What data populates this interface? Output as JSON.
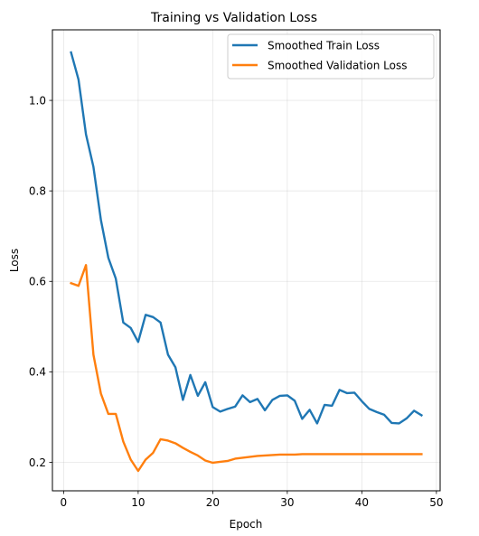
{
  "chart_data": {
    "type": "line",
    "title": "Training vs Validation Loss",
    "xlabel": "Epoch",
    "ylabel": "Loss",
    "xlim": [
      -1.5,
      50.5
    ],
    "ylim": [
      0.137,
      1.156
    ],
    "xticks": [
      0,
      10,
      20,
      30,
      40,
      50
    ],
    "yticks": [
      0.2,
      0.4,
      0.6,
      0.8,
      1.0
    ],
    "ytick_labels": [
      "0.2",
      "0.4",
      "0.6",
      "0.8",
      "1.0"
    ],
    "grid": true,
    "legend_position": "top-right",
    "x": [
      1,
      2,
      3,
      4,
      5,
      6,
      7,
      8,
      9,
      10,
      11,
      12,
      13,
      14,
      15,
      16,
      17,
      18,
      19,
      20,
      21,
      22,
      23,
      24,
      25,
      26,
      27,
      28,
      29,
      30,
      31,
      32,
      33,
      34,
      35,
      36,
      37,
      38,
      39,
      40,
      41,
      42,
      43,
      44,
      45,
      46,
      47,
      48
    ],
    "series": [
      {
        "name": "Smoothed Train Loss",
        "color": "#1f77b4",
        "values": [
          1.106,
          1.046,
          0.925,
          0.853,
          0.736,
          0.652,
          0.606,
          0.509,
          0.497,
          0.466,
          0.526,
          0.521,
          0.509,
          0.438,
          0.41,
          0.338,
          0.393,
          0.347,
          0.377,
          0.322,
          0.312,
          0.318,
          0.323,
          0.348,
          0.333,
          0.34,
          0.315,
          0.338,
          0.347,
          0.348,
          0.336,
          0.296,
          0.316,
          0.286,
          0.327,
          0.325,
          0.36,
          0.353,
          0.354,
          0.335,
          0.318,
          0.311,
          0.305,
          0.287,
          0.286,
          0.297,
          0.314,
          0.304
        ]
      },
      {
        "name": "Smoothed Validation Loss",
        "color": "#ff7f0e",
        "values": [
          0.596,
          0.59,
          0.636,
          0.438,
          0.352,
          0.307,
          0.307,
          0.246,
          0.206,
          0.181,
          0.206,
          0.221,
          0.251,
          0.248,
          0.242,
          0.232,
          0.223,
          0.215,
          0.204,
          0.199,
          0.201,
          0.203,
          0.208,
          0.21,
          0.212,
          0.214,
          0.215,
          0.216,
          0.217,
          0.217,
          0.217,
          0.218,
          0.218,
          0.218,
          0.218,
          0.218,
          0.218,
          0.218,
          0.218,
          0.218,
          0.218,
          0.218,
          0.218,
          0.218,
          0.218,
          0.218,
          0.218,
          0.218
        ]
      }
    ]
  }
}
